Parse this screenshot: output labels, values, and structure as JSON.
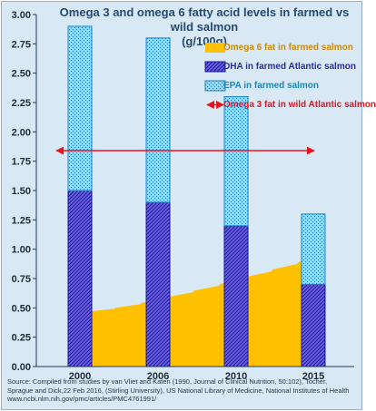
{
  "chart_data": {
    "type": "bar",
    "title": "Omega 3 and omega 6 fatty acid levels in farmed vs wild salmon",
    "subtitle": "(g/100g)",
    "categories": [
      "2000",
      "2006",
      "2010",
      "2015"
    ],
    "ylim": [
      0,
      3.0
    ],
    "yticks": [
      "0.00",
      "0.25",
      "0.50",
      "0.75",
      "1.00",
      "1.25",
      "1.50",
      "1.75",
      "2.00",
      "2.25",
      "2.50",
      "2.75",
      "3.00"
    ],
    "grid": false,
    "legend_position": "top-right",
    "series": [
      {
        "name": "Omega 6 fat in farmed salmon",
        "kind": "area",
        "color": "#ffc000",
        "x": [
          "2000",
          "2015"
        ],
        "values": [
          0.47,
          0.96
        ]
      },
      {
        "name": "DHA in farmed Atlantic salmon",
        "kind": "bar-stacked",
        "color": "#3b2fc9",
        "values": [
          1.5,
          1.4,
          1.2,
          0.7
        ]
      },
      {
        "name": "EPA in farmed salmon",
        "kind": "bar-stacked",
        "color": "#2aa3d8",
        "values": [
          1.4,
          1.4,
          1.1,
          0.6
        ]
      },
      {
        "name": "Omega 3 fat in wild Atlantic salmon",
        "kind": "reference-line",
        "color": "#e8141c",
        "value": 1.84
      }
    ]
  },
  "source_note": "Source: Compiled from studies by van Vliet and Katen (1990, Journal of Clinical Nutrition, 50:102), Tocher, Sprague and Dick,22 Feb 2016, (Stirling University), US National Library of Medicine, National Institutes of Health www.ncbi.nlm.nih.gov/pmc/articles/PMC4761991/"
}
